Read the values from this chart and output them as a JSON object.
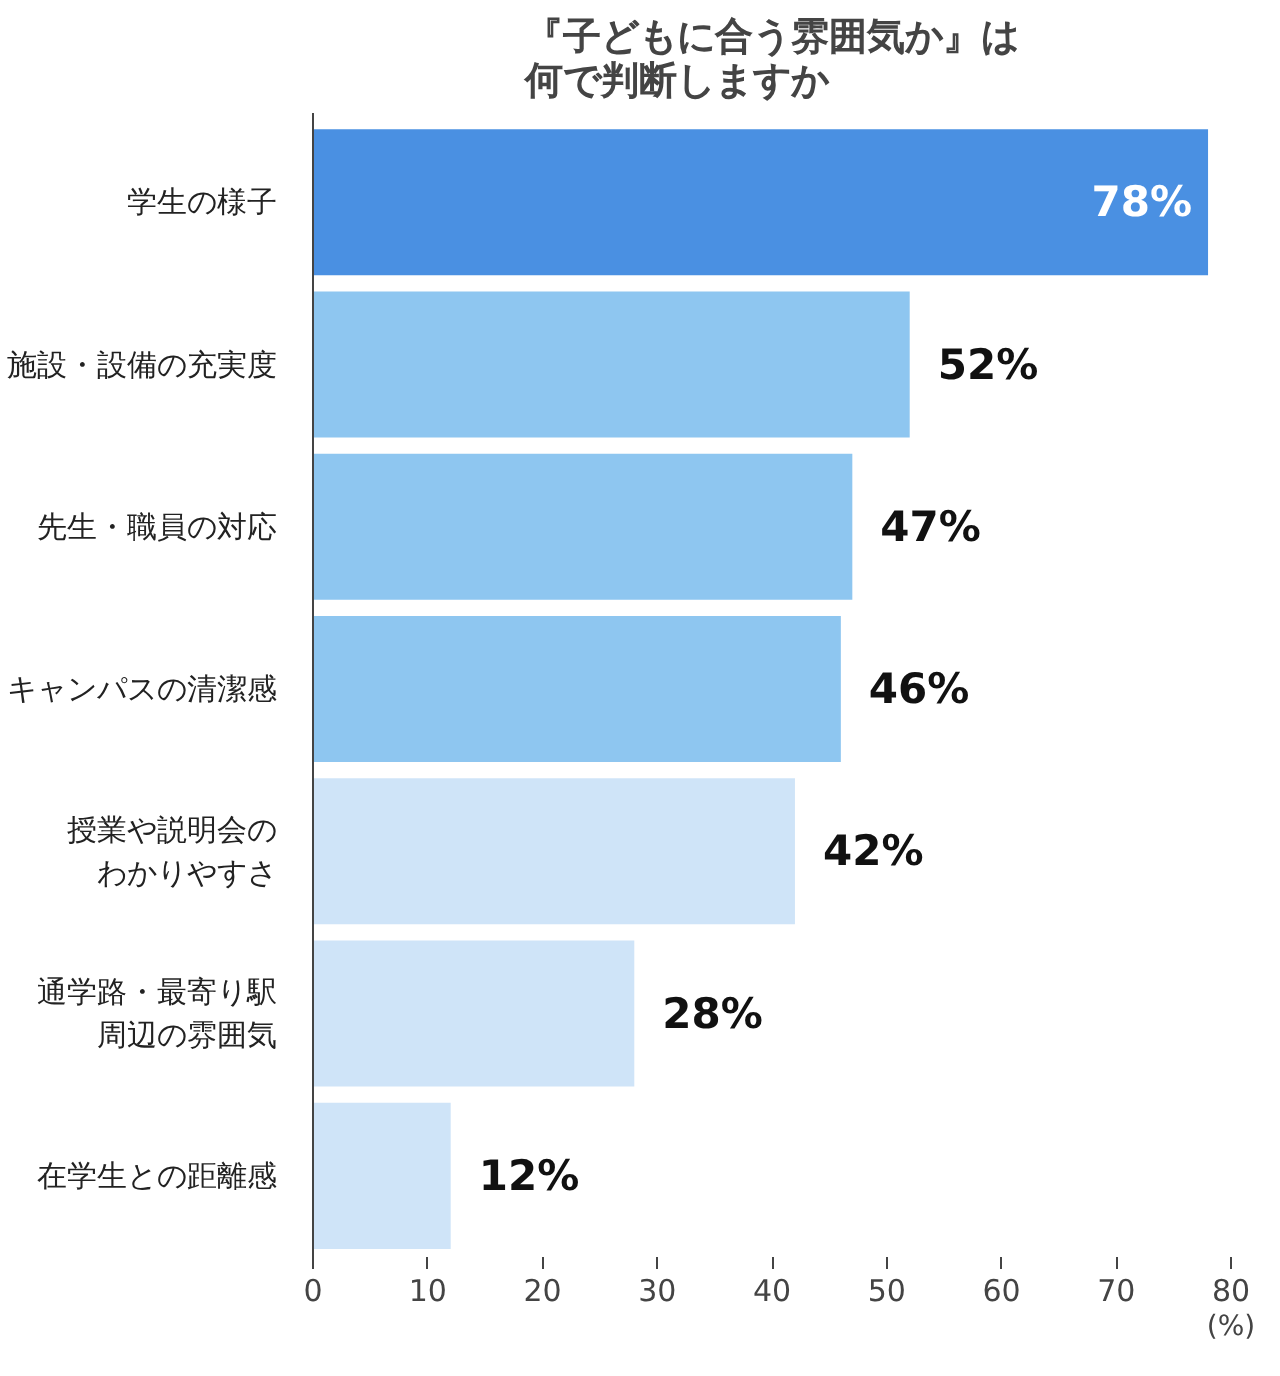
{
  "chart_data": {
    "type": "bar",
    "orientation": "horizontal",
    "title": "『子どもに合う雰囲気か』は何で判断しますか",
    "xlabel": "(%)",
    "categories": [
      "学生の様子",
      "施設・設備の充実度",
      "先生・職員の対応",
      "キャンパスの清潔感",
      "授業や説明会のわかりやすさ",
      "通学路・最寄り駅周辺の雰囲気",
      "在学生との距離感"
    ],
    "values": [
      78,
      52,
      47,
      46,
      42,
      28,
      12
    ],
    "value_labels": [
      "78%",
      "52%",
      "47%",
      "46%",
      "42%",
      "28%",
      "12%"
    ],
    "colors": [
      "#4a90e2",
      "#8ec6f0",
      "#8ec6f0",
      "#8ec6f0",
      "#cfe4f8",
      "#cfe4f8",
      "#cfe4f8"
    ],
    "xlim": [
      0,
      80
    ],
    "xticks": [
      0,
      10,
      20,
      30,
      40,
      50,
      60,
      70,
      80
    ],
    "grid": false
  }
}
